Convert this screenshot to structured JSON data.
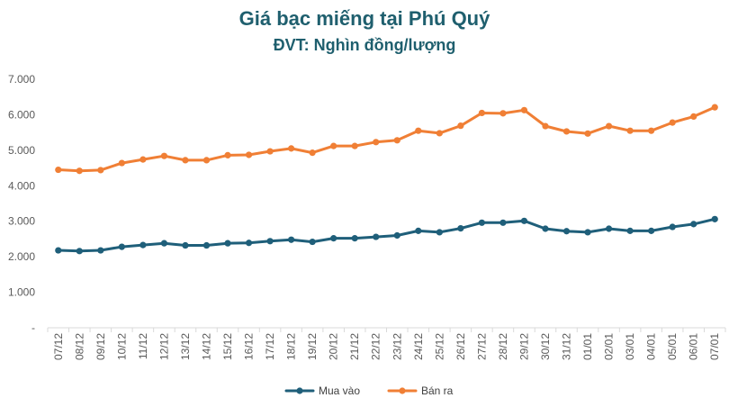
{
  "chart_data": {
    "type": "line",
    "title": "Giá bạc miếng tại Phú Quý",
    "subtitle": "ĐVT: Nghìn đồng/lượng",
    "xlabel": "",
    "ylabel": "",
    "ylim": [
      0,
      7000
    ],
    "y_ticks": [
      0,
      1000,
      2000,
      3000,
      4000,
      5000,
      6000,
      7000
    ],
    "y_tick_labels": [
      "-",
      "1.000",
      "2.000",
      "3.000",
      "4.000",
      "5.000",
      "6.000",
      "7.000"
    ],
    "categories": [
      "07/12",
      "08/12",
      "09/12",
      "10/12",
      "11/12",
      "12/12",
      "13/12",
      "14/12",
      "15/12",
      "16/12",
      "17/12",
      "18/12",
      "19/12",
      "20/12",
      "21/12",
      "22/12",
      "23/12",
      "24/12",
      "25/12",
      "26/12",
      "27/12",
      "28/12",
      "29/12",
      "30/12",
      "31/12",
      "01/01",
      "02/01",
      "03/01",
      "04/01",
      "05/01",
      "06/01",
      "07/01"
    ],
    "series": [
      {
        "name": "Mua vào",
        "color": "#1f5f7a",
        "values": [
          2180,
          2160,
          2180,
          2280,
          2330,
          2380,
          2320,
          2320,
          2380,
          2390,
          2440,
          2480,
          2420,
          2520,
          2520,
          2560,
          2600,
          2730,
          2690,
          2800,
          2960,
          2960,
          3010,
          2790,
          2720,
          2690,
          2790,
          2730,
          2730,
          2840,
          2920,
          3060
        ]
      },
      {
        "name": "Bán ra",
        "color": "#f07f35",
        "values": [
          4450,
          4420,
          4440,
          4640,
          4740,
          4840,
          4720,
          4720,
          4860,
          4870,
          4970,
          5050,
          4930,
          5120,
          5120,
          5230,
          5280,
          5550,
          5480,
          5690,
          6050,
          6040,
          6130,
          5680,
          5530,
          5470,
          5680,
          5550,
          5550,
          5780,
          5950,
          6210
        ]
      }
    ],
    "legend_position": "bottom"
  }
}
